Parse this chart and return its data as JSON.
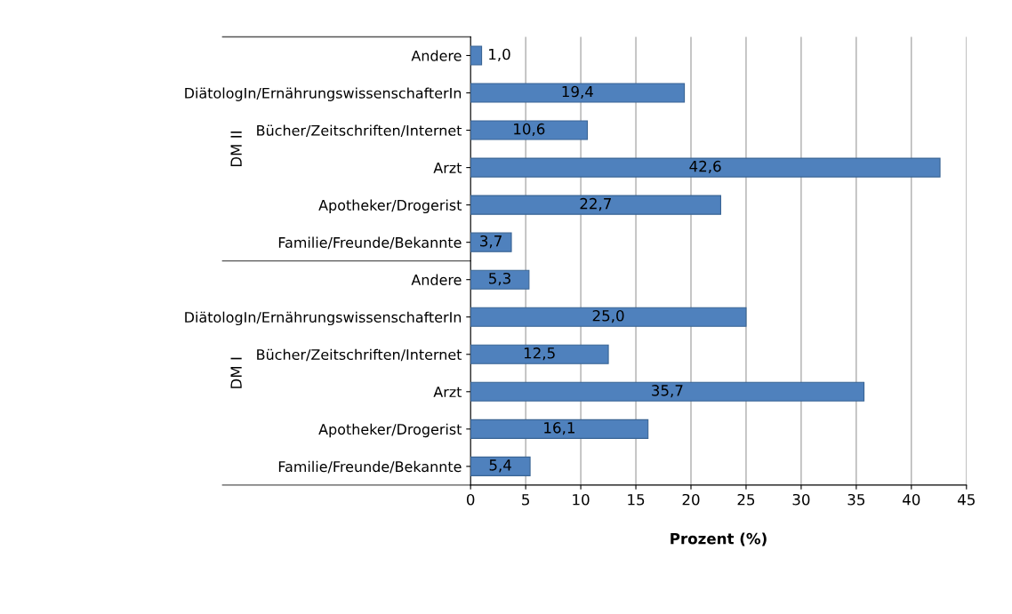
{
  "chart_data": {
    "type": "bar",
    "orientation": "horizontal",
    "xlabel": "Prozent (%)",
    "categories": [
      "Andere",
      "DiätologIn/ErnährungswissenschafterIn",
      "Bücher/Zeitschriften/Internet",
      "Arzt",
      "Apotheker/Drogerist",
      "Familie/Freunde/Bekannte",
      "Andere",
      "DiätologIn/ErnährungswissenschafterIn",
      "Bücher/Zeitschriften/Internet",
      "Arzt",
      "Apotheker/Drogerist",
      "Familie/Freunde/Bekannte"
    ],
    "values": [
      1.0,
      19.4,
      10.6,
      42.6,
      22.7,
      3.7,
      5.3,
      25.0,
      12.5,
      35.7,
      16.1,
      5.4
    ],
    "value_labels": [
      "1,0",
      "19,4",
      "10,6",
      "42,6",
      "22,7",
      "3,7",
      "5,3",
      "25,0",
      "12,5",
      "35,7",
      "16,1",
      "5,4"
    ],
    "color": "#4f81bd",
    "xlim": [
      0,
      45
    ],
    "xticks": [
      0,
      5,
      10,
      15,
      20,
      25,
      30,
      35,
      40,
      45
    ],
    "grid": "x",
    "annotations": [
      "DM II",
      "DM I"
    ]
  }
}
